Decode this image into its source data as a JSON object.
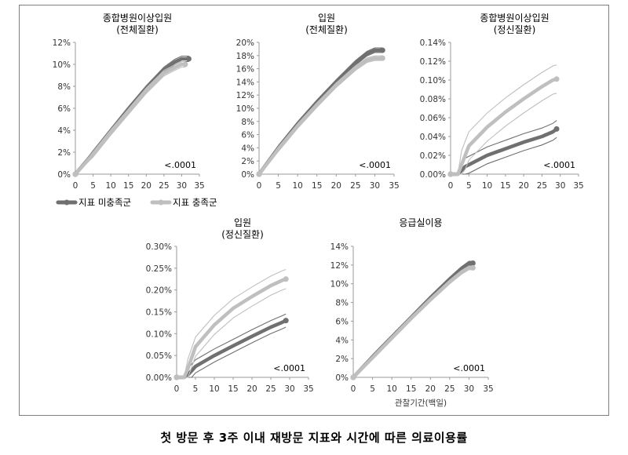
{
  "caption": "첫 방문 후 3주 이내 재방문 지표와 시간에 따른 의료이용률",
  "legend": [
    {
      "label": "지표 미충족군",
      "color": "#707070"
    },
    {
      "label": "지표 충족군",
      "color": "#bfbfbf"
    }
  ],
  "colors": {
    "unmet": "#707070",
    "met": "#bfbfbf",
    "axis": "#9a9a9a"
  },
  "chart_data": [
    {
      "type": "line",
      "title": [
        "종합병원이상입원",
        "(전체질환)"
      ],
      "xlim": [
        0,
        35
      ],
      "xticks": [
        0,
        5,
        10,
        15,
        20,
        25,
        30,
        35
      ],
      "ylim": [
        0,
        12
      ],
      "yticks": [
        "0%",
        "2%",
        "4%",
        "6%",
        "8%",
        "10%",
        "12%"
      ],
      "pvalue": "<.0001",
      "xlabel": "",
      "series": [
        {
          "name": "지표 미충족군",
          "style": "unmet",
          "ci": 0.25,
          "x": [
            0,
            5,
            10,
            15,
            20,
            25,
            28,
            30,
            32
          ],
          "y": [
            0,
            1.9,
            3.9,
            5.9,
            7.8,
            9.5,
            10.2,
            10.5,
            10.5
          ]
        },
        {
          "name": "지표 충족군",
          "style": "met",
          "ci": 0.25,
          "x": [
            0,
            5,
            10,
            15,
            20,
            25,
            28,
            30,
            31
          ],
          "y": [
            0,
            1.8,
            3.8,
            5.7,
            7.6,
            9.2,
            9.7,
            10.0,
            10.0
          ]
        }
      ]
    },
    {
      "type": "line",
      "title": [
        "입원",
        "(전체질환)"
      ],
      "xlim": [
        0,
        35
      ],
      "xticks": [
        0,
        5,
        10,
        15,
        20,
        25,
        30,
        35
      ],
      "ylim": [
        0,
        20
      ],
      "yticks": [
        "0%",
        "2%",
        "4%",
        "6%",
        "8%",
        "10%",
        "12%",
        "14%",
        "16%",
        "18%",
        "20%"
      ],
      "pvalue": "<.0001",
      "xlabel": "",
      "series": [
        {
          "name": "지표 미충족군",
          "style": "unmet",
          "ci": 0.35,
          "x": [
            0,
            5,
            10,
            15,
            20,
            25,
            28,
            30,
            32
          ],
          "y": [
            0,
            4.0,
            7.6,
            10.9,
            14.0,
            16.9,
            18.3,
            18.8,
            18.8
          ]
        },
        {
          "name": "지표 충족군",
          "style": "met",
          "ci": 0.35,
          "x": [
            0,
            5,
            10,
            15,
            20,
            25,
            28,
            30,
            32
          ],
          "y": [
            0,
            3.8,
            7.3,
            10.5,
            13.5,
            16.1,
            17.3,
            17.6,
            17.6
          ]
        }
      ]
    },
    {
      "type": "line",
      "title": [
        "종합병원이상입원",
        "(정신질환)"
      ],
      "xlim": [
        0,
        35
      ],
      "xticks": [
        0,
        5,
        10,
        15,
        20,
        25,
        30,
        35
      ],
      "ylim": [
        0,
        0.14
      ],
      "yticks": [
        "0.00%",
        "0.02%",
        "0.04%",
        "0.06%",
        "0.08%",
        "0.10%",
        "0.12%",
        "0.14%"
      ],
      "pvalue": "<.0001",
      "xlabel": "",
      "series": [
        {
          "name": "지표 미충족군",
          "style": "unmet",
          "ci": 0.009,
          "x": [
            0,
            2,
            3,
            4,
            5,
            10,
            15,
            20,
            25,
            28,
            29
          ],
          "y": [
            0,
            0,
            0.004,
            0.008,
            0.01,
            0.02,
            0.027,
            0.034,
            0.04,
            0.045,
            0.048
          ]
        },
        {
          "name": "지표 충족군",
          "style": "met",
          "ci": 0.015,
          "x": [
            0,
            2,
            3,
            4,
            5,
            10,
            15,
            20,
            25,
            28,
            29
          ],
          "y": [
            0,
            0,
            0.01,
            0.02,
            0.03,
            0.05,
            0.066,
            0.08,
            0.093,
            0.1,
            0.101
          ]
        }
      ]
    },
    {
      "type": "line",
      "title": [
        "입원",
        "(정신질환)"
      ],
      "xlim": [
        0,
        35
      ],
      "xticks": [
        0,
        5,
        10,
        15,
        20,
        25,
        30,
        35
      ],
      "ylim": [
        0,
        0.3
      ],
      "yticks": [
        "0.00%",
        "0.05%",
        "0.10%",
        "0.15%",
        "0.20%",
        "0.25%",
        "0.30%"
      ],
      "pvalue": "<.0001",
      "xlabel": "",
      "series": [
        {
          "name": "지표 미충족군",
          "style": "unmet",
          "ci": 0.015,
          "x": [
            0,
            2,
            3,
            4,
            5,
            10,
            15,
            20,
            25,
            28,
            29
          ],
          "y": [
            0,
            0,
            0.006,
            0.015,
            0.025,
            0.05,
            0.072,
            0.094,
            0.115,
            0.126,
            0.13
          ]
        },
        {
          "name": "지표 충족군",
          "style": "met",
          "ci": 0.022,
          "x": [
            0,
            2,
            3,
            4,
            5,
            10,
            15,
            20,
            25,
            28,
            29
          ],
          "y": [
            0,
            0,
            0.02,
            0.045,
            0.07,
            0.12,
            0.158,
            0.185,
            0.21,
            0.222,
            0.225
          ]
        }
      ]
    },
    {
      "type": "line",
      "title": [
        "응급실이용"
      ],
      "xlim": [
        0,
        35
      ],
      "xticks": [
        0,
        5,
        10,
        15,
        20,
        25,
        30,
        35
      ],
      "ylim": [
        0,
        14
      ],
      "yticks": [
        "0%",
        "2%",
        "4%",
        "6%",
        "8%",
        "10%",
        "12%",
        "14%"
      ],
      "pvalue": "<.0001",
      "xlabel": "관찰기간(백일)",
      "series": [
        {
          "name": "지표 미충족군",
          "style": "unmet",
          "ci": 0.2,
          "x": [
            0,
            5,
            10,
            15,
            20,
            25,
            28,
            30,
            31
          ],
          "y": [
            0,
            2.2,
            4.3,
            6.4,
            8.5,
            10.5,
            11.6,
            12.2,
            12.2
          ]
        },
        {
          "name": "지표 충족군",
          "style": "met",
          "ci": 0.2,
          "x": [
            0,
            5,
            10,
            15,
            20,
            25,
            28,
            30,
            31
          ],
          "y": [
            0,
            2.1,
            4.2,
            6.3,
            8.3,
            10.2,
            11.2,
            11.7,
            11.7
          ]
        }
      ]
    }
  ]
}
